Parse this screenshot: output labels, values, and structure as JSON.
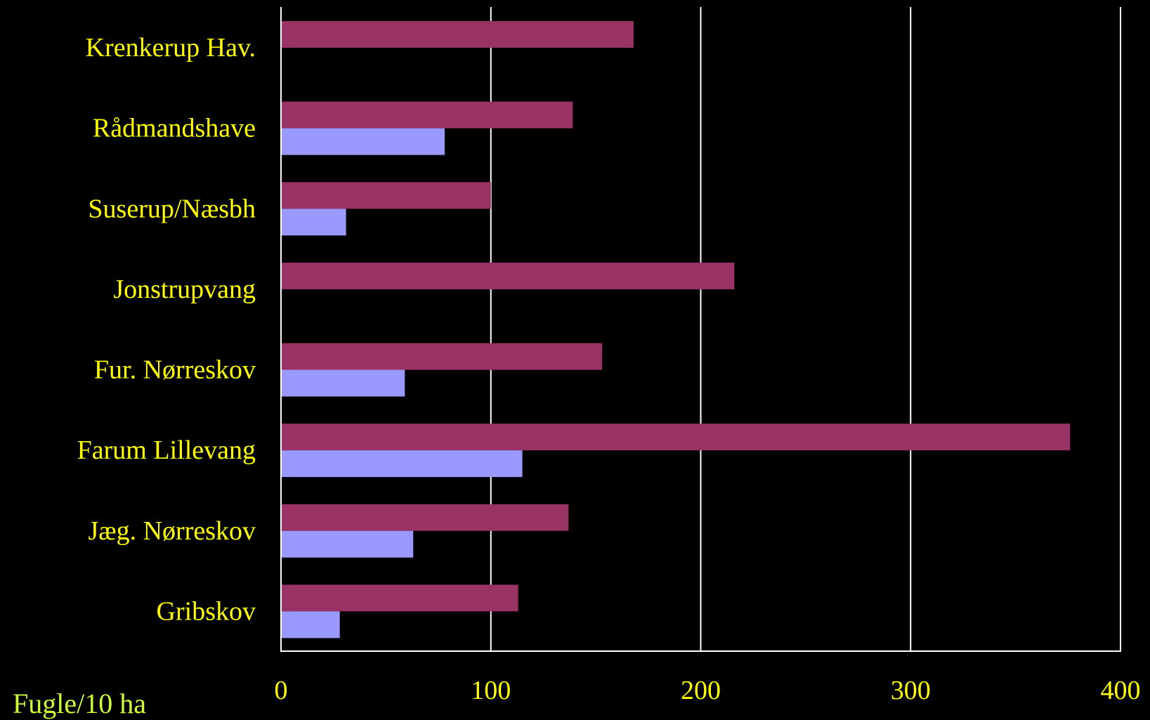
{
  "colors": {
    "background": "#000000",
    "text": "#FFFF00",
    "unit_text": "#CCFF33",
    "gridline": "#FFFFFF",
    "series_a": "#993366",
    "series_b": "#9999FF"
  },
  "chart_data": {
    "type": "bar",
    "orientation": "horizontal",
    "categories": [
      "Krenkerup Hav.",
      "Rådmandshave",
      "Suserup/Næsbh",
      "Jonstrupvang",
      "Fur. Nørreskov",
      "Farum Lillevang",
      "Jæg. Nørreskov",
      "Gribskov"
    ],
    "series": [
      {
        "values": [
          168,
          139,
          100,
          216,
          153,
          376,
          137,
          113
        ]
      },
      {
        "values": [
          null,
          78,
          31,
          null,
          59,
          115,
          63,
          28
        ]
      }
    ],
    "xlim": [
      0,
      400
    ],
    "xticks": [
      0,
      100,
      200,
      300,
      400
    ],
    "xtick_labels": [
      "0",
      "100",
      "200",
      "300",
      "400"
    ],
    "unit_label": "Fugle/10 ha",
    "grid": "vertical",
    "legend": "none"
  }
}
